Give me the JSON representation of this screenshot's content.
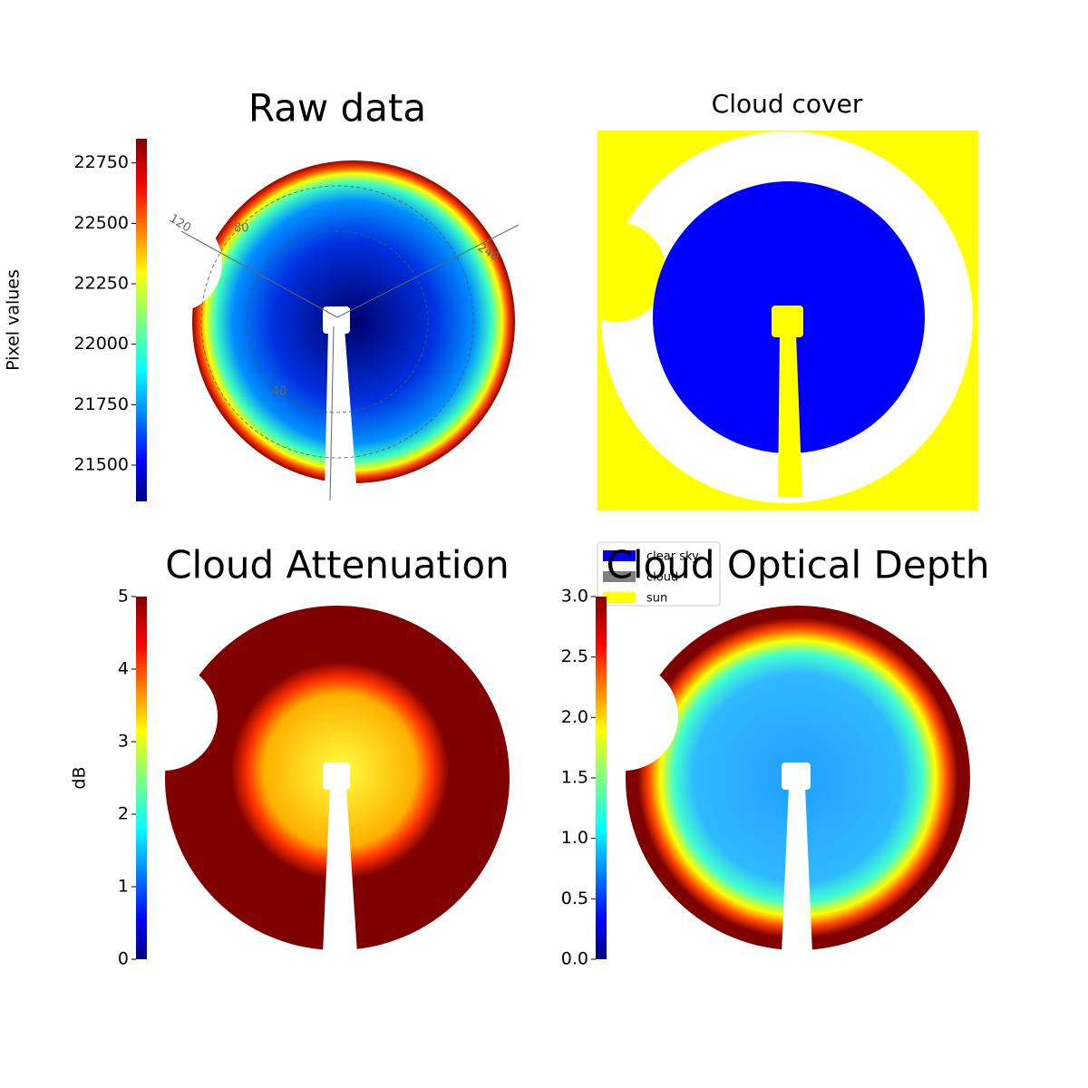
{
  "chart_data": [
    {
      "type": "image",
      "title": "Raw data",
      "colormap": "jet",
      "ylabel": "Pixel values",
      "ylim": [
        21350,
        22850
      ],
      "yticks": [
        21500,
        21750,
        22000,
        22250,
        22500,
        22750
      ],
      "annotations": [
        "120",
        "80",
        "240",
        "40"
      ]
    },
    {
      "type": "image",
      "title": "Cloud cover",
      "series": [
        {
          "name": "clear sky",
          "color": "#0000ff"
        },
        {
          "name": "cloud",
          "color": "#808080"
        },
        {
          "name": "sun",
          "color": "#ffff00"
        }
      ]
    },
    {
      "type": "image",
      "title": "Cloud Attenuation",
      "colormap": "jet",
      "ylabel": "dB",
      "ylim": [
        0,
        5
      ],
      "yticks": [
        0,
        1,
        2,
        3,
        4,
        5
      ]
    },
    {
      "type": "image",
      "title": "Cloud Optical Depth",
      "colormap": "jet",
      "ylim": [
        0,
        3
      ],
      "yticks": [
        {
          "value": 0,
          "label": "0.0"
        },
        {
          "value": 0.5,
          "label": "0.5"
        },
        {
          "value": 1,
          "label": "1.0"
        },
        {
          "value": 1.5,
          "label": "1.5"
        },
        {
          "value": 2,
          "label": "2.0"
        },
        {
          "value": 2.5,
          "label": "2.5"
        },
        {
          "value": 3,
          "label": "3.0"
        }
      ]
    }
  ]
}
